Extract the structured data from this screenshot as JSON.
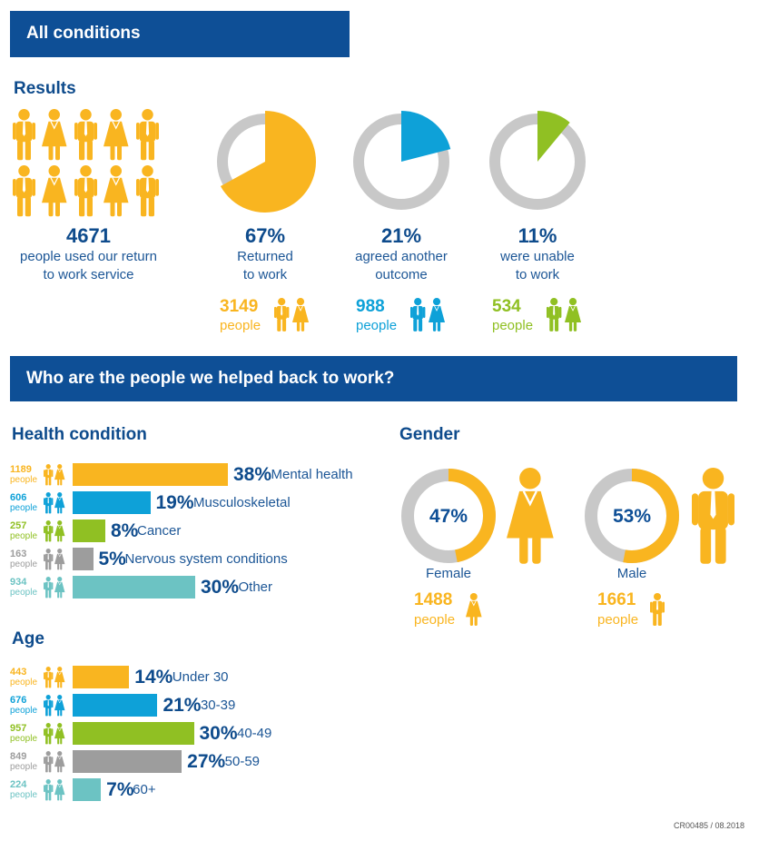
{
  "sections": {
    "all_conditions": "All conditions",
    "results": "Results",
    "who": "Who are the people we helped back to work?",
    "health_condition": "Health condition",
    "gender": "Gender",
    "age": "Age"
  },
  "summary": {
    "total": "4671",
    "total_label_line1": "people used our return",
    "total_label_line2": "to work service",
    "people_word": "people"
  },
  "colors": {
    "yellow": "#f9b520",
    "blue": "#0ea1d8",
    "green": "#90c023",
    "grey": "#9d9d9d",
    "teal": "#6cc3c3",
    "ring": "#c8c8c8",
    "navy": "#0e4f96"
  },
  "icons": [
    "person-male-icon",
    "person-female-icon"
  ],
  "footer": "CR00485 / 08.2018",
  "chart_data": [
    {
      "type": "pie",
      "title": "Results",
      "slices": [
        {
          "percent_label": "67%",
          "value": 67,
          "label_line1": "Returned",
          "label_line2": "to work",
          "count": "3149",
          "color": "#f9b520"
        },
        {
          "percent_label": "21%",
          "value": 21,
          "label_line1": "agreed another",
          "label_line2": "outcome",
          "count": "988",
          "color": "#0ea1d8"
        },
        {
          "percent_label": "11%",
          "value": 11,
          "label_line1": "were unable",
          "label_line2": "to work",
          "count": "534",
          "color": "#90c023"
        }
      ]
    },
    {
      "type": "bar",
      "title": "Health condition",
      "categories": [
        "Mental health",
        "Musculoskeletal",
        "Cancer",
        "Nervous system conditions",
        "Other"
      ],
      "values": [
        38,
        19,
        8,
        5,
        30
      ],
      "percent_labels": [
        "38%",
        "19%",
        "8%",
        "5%",
        "30%"
      ],
      "counts": [
        "1189",
        "606",
        "257",
        "163",
        "934"
      ],
      "colors": [
        "#f9b520",
        "#0ea1d8",
        "#90c023",
        "#9d9d9d",
        "#6cc3c3"
      ]
    },
    {
      "type": "pie",
      "title": "Gender",
      "slices": [
        {
          "label": "Female",
          "percent_label": "47%",
          "value": 47,
          "count": "1488",
          "color": "#f9b520"
        },
        {
          "label": "Male",
          "percent_label": "53%",
          "value": 53,
          "count": "1661",
          "color": "#f9b520"
        }
      ]
    },
    {
      "type": "bar",
      "title": "Age",
      "categories": [
        "Under 30",
        "30-39",
        "40-49",
        "50-59",
        "60+"
      ],
      "values": [
        14,
        21,
        30,
        27,
        7
      ],
      "percent_labels": [
        "14%",
        "21%",
        "30%",
        "27%",
        "7%"
      ],
      "counts": [
        "443",
        "676",
        "957",
        "849",
        "224"
      ],
      "colors": [
        "#f9b520",
        "#0ea1d8",
        "#90c023",
        "#9d9d9d",
        "#6cc3c3"
      ]
    }
  ]
}
